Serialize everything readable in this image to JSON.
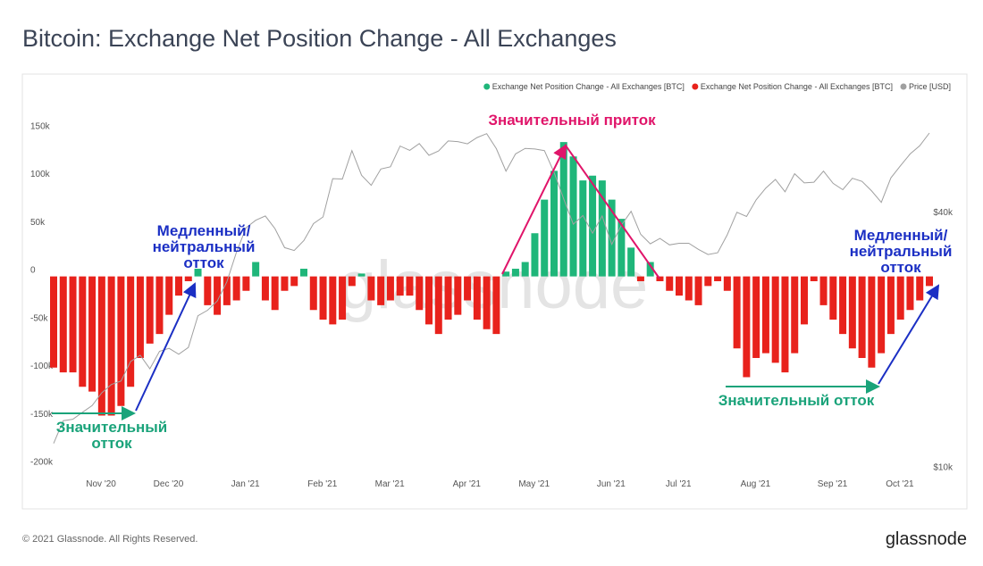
{
  "chart_data": {
    "type": "bar",
    "title": "Bitcoin: Exchange Net Position Change - All Exchanges",
    "footer": "© 2021 Glassnode. All Rights Reserved.",
    "logo": "glassnode",
    "watermark": "glassnode",
    "legend": "top-right",
    "y2scale": "log",
    "categories": [
      null,
      null,
      null,
      null,
      "Nov '20",
      null,
      null,
      null,
      null,
      null,
      null,
      "Dec '20",
      null,
      null,
      null,
      null,
      null,
      null,
      null,
      "Jan '21",
      null,
      null,
      null,
      null,
      null,
      null,
      null,
      "Feb '21",
      null,
      null,
      null,
      null,
      null,
      null,
      "Mar '21",
      null,
      null,
      null,
      null,
      null,
      null,
      null,
      "Apr '21",
      null,
      null,
      null,
      null,
      null,
      null,
      "May '21",
      null,
      null,
      null,
      null,
      null,
      null,
      null,
      "Jun '21",
      null,
      null,
      null,
      null,
      null,
      null,
      "Jul '21",
      null,
      null,
      null,
      null,
      null,
      null,
      null,
      "Aug '21",
      null,
      null,
      null,
      null,
      null,
      null,
      null,
      "Sep '21",
      null,
      null,
      null,
      null,
      null,
      null,
      "Oct '21",
      null,
      null,
      null,
      null
    ],
    "series": [
      {
        "name": "Exchange Net Position Change - All Exchanges [BTC]",
        "color": "#1fb67a",
        "values": [
          null,
          null,
          null,
          null,
          null,
          null,
          null,
          null,
          null,
          null,
          null,
          null,
          null,
          null,
          null,
          8000,
          null,
          null,
          null,
          null,
          null,
          15000,
          null,
          null,
          null,
          null,
          8000,
          null,
          null,
          null,
          null,
          null,
          3000,
          null,
          null,
          null,
          null,
          null,
          null,
          null,
          null,
          null,
          null,
          null,
          null,
          null,
          null,
          5000,
          8000,
          15000,
          45000,
          80000,
          110000,
          140000,
          125000,
          100000,
          105000,
          100000,
          80000,
          60000,
          30000,
          null,
          15000,
          null,
          null,
          null,
          null,
          null,
          null,
          null,
          null,
          null,
          null,
          null,
          null,
          null,
          null,
          null,
          null,
          null,
          null,
          null,
          null,
          null,
          null,
          null,
          null,
          null,
          null,
          null,
          null,
          null
        ]
      },
      {
        "name": "Exchange Net Position Change - All Exchanges [BTC]",
        "color": "#e8221c",
        "values": [
          -95000,
          -100000,
          -100000,
          -115000,
          -120000,
          -145000,
          -145000,
          -135000,
          -115000,
          -85000,
          -70000,
          -60000,
          -40000,
          -20000,
          -5000,
          null,
          -30000,
          -40000,
          -30000,
          -25000,
          -15000,
          null,
          -25000,
          -35000,
          -15000,
          -10000,
          null,
          -35000,
          -45000,
          -50000,
          -45000,
          -10000,
          null,
          -25000,
          -30000,
          -25000,
          -20000,
          -20000,
          -35000,
          -50000,
          -60000,
          -45000,
          -40000,
          -25000,
          -45000,
          -55000,
          -60000,
          null,
          null,
          null,
          null,
          null,
          null,
          null,
          null,
          null,
          null,
          null,
          null,
          null,
          null,
          -5000,
          null,
          -5000,
          -15000,
          -20000,
          -25000,
          -30000,
          -10000,
          -5000,
          -15000,
          -75000,
          -105000,
          -85000,
          -80000,
          -90000,
          -100000,
          -80000,
          -50000,
          -5000,
          -30000,
          -45000,
          -60000,
          -75000,
          -85000,
          -95000,
          -80000,
          -60000,
          -45000,
          -35000,
          -25000,
          -10000
        ]
      },
      {
        "name": "Price [USD]",
        "color": "#a0a0a0",
        "axis": "y2",
        "values": [
          11400,
          12900,
          13000,
          13500,
          14000,
          15000,
          15700,
          16000,
          17800,
          18400,
          17100,
          18800,
          19100,
          18500,
          19200,
          22800,
          23500,
          24700,
          27400,
          32200,
          36800,
          38300,
          39200,
          36600,
          33000,
          32500,
          34300,
          37600,
          39000,
          48000,
          47900,
          55900,
          48900,
          46300,
          50600,
          51200,
          57300,
          56000,
          58100,
          54500,
          55800,
          58900,
          58700,
          58000,
          60000,
          61300,
          56500,
          50000,
          54900,
          56600,
          56400,
          55900,
          49700,
          43000,
          37500,
          39300,
          35700,
          39200,
          33600,
          37300,
          40200,
          35500,
          33700,
          34700,
          33500,
          33800,
          33800,
          32700,
          31800,
          32100,
          35400,
          40000,
          39100,
          42800,
          45600,
          47800,
          44700,
          49300,
          46900,
          47100,
          50000,
          46800,
          45200,
          48100,
          47300,
          44900,
          42200,
          48200,
          51500,
          54900,
          57400,
          61500
        ]
      }
    ],
    "ylim": [
      -205000,
      195000
    ],
    "yticks": [
      {
        "value": 150000,
        "label": "150k"
      },
      {
        "value": 100000,
        "label": "100k"
      },
      {
        "value": 50000,
        "label": "50k"
      },
      0,
      {
        "value": -50000,
        "label": "-50k"
      },
      {
        "value": -100000,
        "label": "-100k"
      },
      {
        "value": -150000,
        "label": "-150k"
      },
      {
        "value": -200000,
        "label": "-200k"
      }
    ],
    "y2lim": [
      9700,
      78000
    ],
    "y2ticks": [
      {
        "value": 40000,
        "label": "$40k"
      },
      {
        "value": 10000,
        "label": "$10k"
      }
    ],
    "annotations": [
      [
        "Значительный приток"
      ],
      [
        "Медленный/",
        "нейтральный",
        "отток"
      ],
      [
        "Значительный",
        "отток"
      ],
      [
        "Медленный/",
        "нейтральный",
        "отток"
      ],
      [
        "Значительный отток"
      ]
    ]
  }
}
